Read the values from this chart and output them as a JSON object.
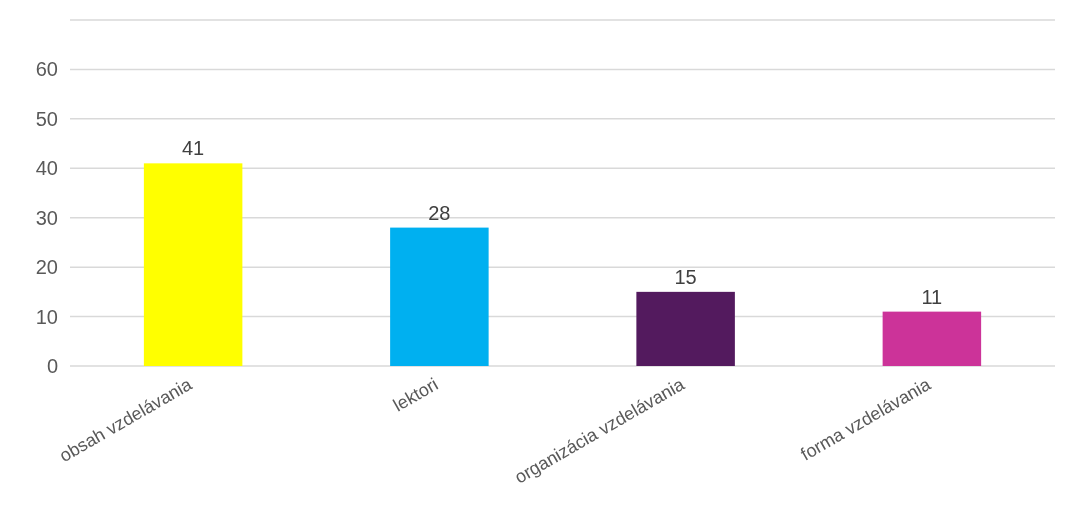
{
  "chart_data": {
    "type": "bar",
    "categories": [
      "obsah vzdelávania",
      "lektori",
      "organizácia vzdelávania",
      "forma vzdelávania"
    ],
    "values": [
      41,
      28,
      15,
      11
    ],
    "colors": [
      "#ffff00",
      "#00b0f0",
      "#531a5e",
      "#cc3399"
    ],
    "ylim": [
      0,
      70
    ],
    "yticks": [
      0,
      10,
      20,
      30,
      40,
      50,
      60,
      {
        "value": 70,
        "label": null
      }
    ],
    "grid": "y",
    "data_labels": true
  }
}
